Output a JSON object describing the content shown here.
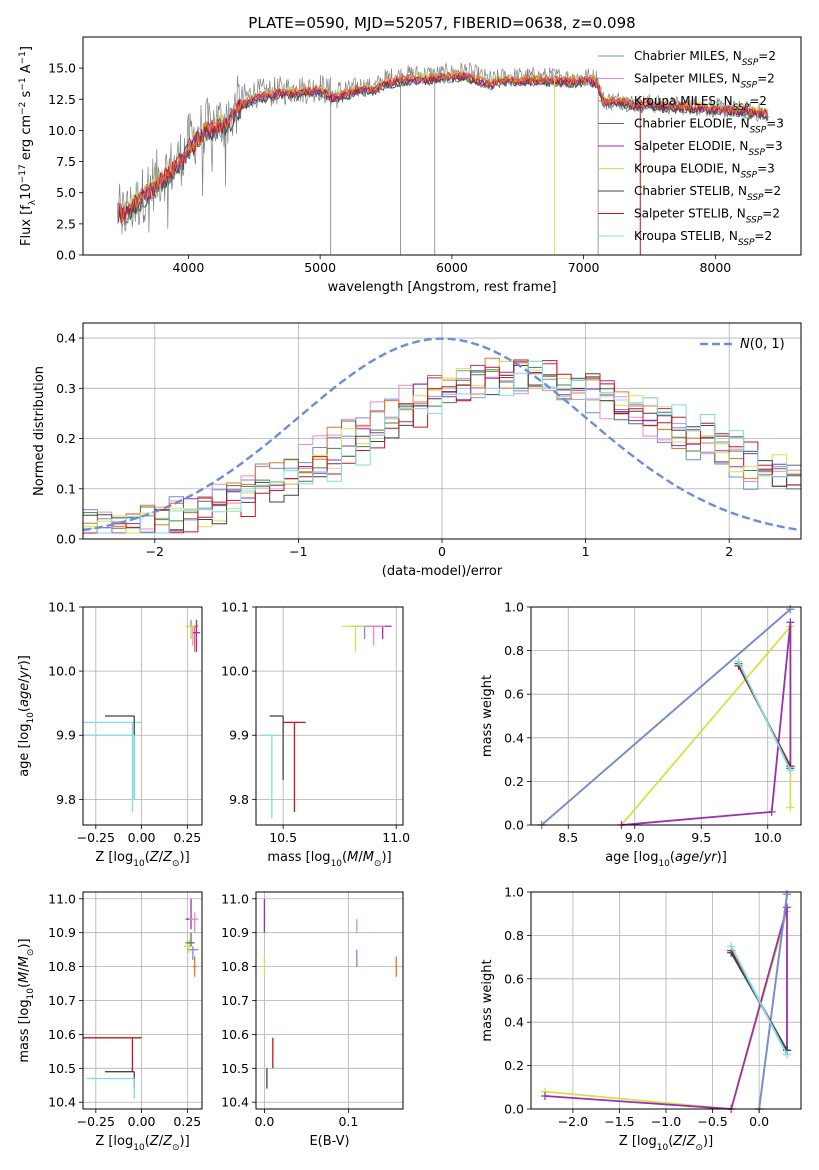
{
  "figure": {
    "title": "PLATE=0590, MJD=52057, FIBERID=0638, z=0.098"
  },
  "series_styles": [
    {
      "name": "Chabrier MILES, N$_{SSP}$=2",
      "label_text": "Chabrier MILES, N",
      "label_sub": "SSP",
      "label_end": "=2",
      "color": "#6f8fd8"
    },
    {
      "name": "Salpeter MILES, N$_{SSP}$=2",
      "label_text": "Salpeter MILES, N",
      "label_sub": "SSP",
      "label_end": "=2",
      "color": "#e98bcd"
    },
    {
      "name": "Kroupa MILES, N$_{SSP}$=2",
      "label_text": "Kroupa MILES, N",
      "label_sub": "SSP",
      "label_end": "=2",
      "color": "#e8742a"
    },
    {
      "name": "Chabrier ELODIE, N$_{SSP}$=3",
      "label_text": "Chabrier ELODIE, N",
      "label_sub": "SSP",
      "label_end": "=3",
      "color": "#4c7f4c"
    },
    {
      "name": "Salpeter ELODIE, N$_{SSP}$=3",
      "label_text": "Salpeter ELODIE, N",
      "label_sub": "SSP",
      "label_end": "=3",
      "color": "#9b2fae"
    },
    {
      "name": "Kroupa ELODIE, N$_{SSP}$=3",
      "label_text": "Kroupa ELODIE, N",
      "label_sub": "SSP",
      "label_end": "=3",
      "color": "#d7e049"
    },
    {
      "name": "Chabrier STELIB, N$_{SSP}$=2",
      "label_text": "Chabrier STELIB, N",
      "label_sub": "SSP",
      "label_end": "=2",
      "color": "#444444"
    },
    {
      "name": "Salpeter STELIB, N$_{SSP}$=2",
      "label_text": "Salpeter STELIB, N",
      "label_sub": "SSP",
      "label_end": "=2",
      "color": "#c0191e"
    },
    {
      "name": "Kroupa STELIB, N$_{SSP}$=2",
      "label_text": "Kroupa STELIB, N",
      "label_sub": "SSP",
      "label_end": "=2",
      "color": "#7fdde6"
    }
  ],
  "chart_data": [
    {
      "id": "spectrum",
      "type": "line",
      "xlabel": "wavelength [Angstrom, rest frame]",
      "ylabel": "Flux [f$_\\lambda$ 10$^{-17}$ erg cm$^{-2}$ s$^{-1}$ A$^{-1}$]",
      "xlim": [
        3200,
        8650
      ],
      "ylim": [
        0,
        17.5
      ],
      "xticks": [
        4000,
        5000,
        6000,
        7000,
        8000
      ],
      "yticks": [
        0.0,
        2.5,
        5.0,
        7.5,
        10.0,
        12.5,
        15.0
      ],
      "data_color": "#808080",
      "data_knots": {
        "x": [
          3450,
          3500,
          3600,
          3700,
          3800,
          3900,
          3950,
          4000,
          4100,
          4200,
          4300,
          4400,
          4500,
          4600,
          4700,
          4800,
          4900,
          5000,
          5100,
          5200,
          5300,
          5400,
          5500,
          5600,
          5700,
          5800,
          5900,
          6000,
          6100,
          6200,
          6300,
          6400,
          6500,
          6600,
          6700,
          6800,
          6900,
          7000,
          7100,
          7150,
          7200,
          7300,
          7400,
          7500,
          7600,
          7700,
          7800,
          7900,
          8000,
          8100,
          8200,
          8300,
          8400
        ],
        "y": [
          3.5,
          3.2,
          4.0,
          5.5,
          6.5,
          7.2,
          8.0,
          9.0,
          10.0,
          10.6,
          10.8,
          12.5,
          13.0,
          13.0,
          13.2,
          13.3,
          13.3,
          13.5,
          12.8,
          13.2,
          13.6,
          13.4,
          14.2,
          14.4,
          14.5,
          14.5,
          14.5,
          14.6,
          14.8,
          14.4,
          14.0,
          14.3,
          14.3,
          14.3,
          14.3,
          14.3,
          14.2,
          14.3,
          14.2,
          12.4,
          12.4,
          12.4,
          12.1,
          12.2,
          12.0,
          12.0,
          12.0,
          11.9,
          11.8,
          11.7,
          11.6,
          11.5,
          11.4
        ]
      },
      "model_knots": {
        "x": [
          3450,
          3500,
          3600,
          3700,
          3800,
          3900,
          3950,
          4000,
          4100,
          4200,
          4300,
          4400,
          4500,
          4600,
          4700,
          4800,
          4900,
          5000,
          5100,
          5200,
          5300,
          5400,
          5500,
          5600,
          5700,
          5800,
          5900,
          6000,
          6100,
          6200,
          6300,
          6400,
          6500,
          6600,
          6700,
          6800,
          6900,
          7000,
          7100,
          7150,
          7200,
          7300,
          7400,
          7500,
          7600,
          7700,
          7800,
          7900,
          8000,
          8100,
          8200,
          8300,
          8400
        ],
        "y": [
          4.0,
          3.0,
          4.2,
          5.0,
          6.0,
          7.0,
          7.5,
          8.5,
          9.6,
          10.2,
          10.5,
          12.0,
          12.6,
          12.8,
          13.0,
          13.0,
          13.1,
          13.2,
          12.6,
          12.9,
          13.3,
          13.2,
          13.8,
          14.0,
          14.1,
          14.1,
          14.2,
          14.3,
          14.4,
          14.0,
          13.7,
          14.0,
          14.0,
          14.0,
          14.0,
          14.0,
          13.9,
          14.0,
          13.9,
          12.3,
          12.3,
          12.3,
          12.0,
          12.1,
          11.9,
          11.9,
          11.9,
          11.8,
          11.7,
          11.6,
          11.5,
          11.4,
          11.3
        ]
      }
    },
    {
      "id": "residual_histogram",
      "type": "step",
      "xlabel": "(data-model)/error",
      "ylabel": "Normed distribution",
      "xlim": [
        -2.5,
        2.5
      ],
      "ylim": [
        0,
        0.43
      ],
      "xticks": [
        -2,
        -1,
        0,
        1,
        2
      ],
      "yticks": [
        0.0,
        0.1,
        0.2,
        0.3,
        0.4
      ],
      "gaussian": {
        "label": "$\\mathcal{N}(0,1)$",
        "mean": 0,
        "sigma": 1,
        "color": "#6a8fd6"
      },
      "bin_width": 0.1,
      "hist_profile": {
        "x": [
          -2.5,
          -2.0,
          -1.5,
          -1.0,
          -0.5,
          0.0,
          0.5,
          1.0,
          1.5,
          2.0,
          2.5
        ],
        "y": [
          0.02,
          0.03,
          0.07,
          0.13,
          0.22,
          0.3,
          0.33,
          0.3,
          0.24,
          0.17,
          0.11
        ]
      }
    },
    {
      "id": "age_vs_Z",
      "type": "errorbar",
      "xlabel": "Z [log$_{10}$(Z/Z$_\\odot$)]",
      "ylabel": "age  [log$_{10}$(age/yr)]",
      "xlim": [
        -0.32,
        0.33
      ],
      "ylim": [
        9.76,
        10.1
      ],
      "xticks": [
        -0.25,
        0.0,
        0.25
      ],
      "yticks": [
        9.8,
        9.9,
        10.0,
        10.1
      ],
      "points": [
        {
          "s": 8,
          "x": -0.05,
          "y": 9.92,
          "xlo": -0.32,
          "xhi": 0.0,
          "ylo": 9.78,
          "yhi": 9.92
        },
        {
          "s": 6,
          "x": -0.04,
          "y": 9.93,
          "xlo": -0.2,
          "xhi": -0.04,
          "ylo": 9.8,
          "yhi": 9.93
        },
        {
          "s": 8,
          "x": -0.04,
          "y": 9.9,
          "xlo": -0.32,
          "xhi": -0.04,
          "ylo": 9.8,
          "yhi": 9.9
        },
        {
          "s": 0,
          "x": 0.27,
          "y": 10.07,
          "xlo": 0.25,
          "xhi": 0.29,
          "ylo": 10.05,
          "yhi": 10.08
        },
        {
          "s": 1,
          "x": 0.28,
          "y": 10.07,
          "xlo": 0.26,
          "xhi": 0.3,
          "ylo": 10.04,
          "yhi": 10.07
        },
        {
          "s": 2,
          "x": 0.29,
          "y": 10.07,
          "xlo": 0.27,
          "xhi": 0.31,
          "ylo": 10.03,
          "yhi": 10.07
        },
        {
          "s": 4,
          "x": 0.3,
          "y": 10.06,
          "xlo": 0.28,
          "xhi": 0.32,
          "ylo": 10.03,
          "yhi": 10.08
        },
        {
          "s": 5,
          "x": 0.27,
          "y": 10.07,
          "xlo": 0.24,
          "xhi": 0.29,
          "ylo": 10.05,
          "yhi": 10.07
        }
      ]
    },
    {
      "id": "age_vs_mass",
      "type": "errorbar",
      "xlabel": "mass [log$_{10}$(M/M$_\\odot$)]",
      "ylabel": "",
      "xlim": [
        10.38,
        11.03
      ],
      "ylim": [
        9.76,
        10.1
      ],
      "xticks": [
        10.5,
        11.0
      ],
      "yticks": [
        9.8,
        9.9,
        10.0,
        10.1
      ],
      "points": [
        {
          "s": 7,
          "x": 10.55,
          "y": 9.92,
          "xlo": 10.5,
          "xhi": 10.6,
          "ylo": 9.78,
          "yhi": 9.92
        },
        {
          "s": 6,
          "x": 10.5,
          "y": 9.93,
          "xlo": 10.44,
          "xhi": 10.5,
          "ylo": 9.83,
          "yhi": 9.93
        },
        {
          "s": 8,
          "x": 10.45,
          "y": 9.9,
          "xlo": 10.4,
          "xhi": 10.48,
          "ylo": 9.77,
          "yhi": 9.9
        },
        {
          "s": 0,
          "x": 10.86,
          "y": 10.07,
          "xlo": 10.8,
          "xhi": 10.9,
          "ylo": 10.05,
          "yhi": 10.07
        },
        {
          "s": 4,
          "x": 10.94,
          "y": 10.07,
          "xlo": 10.9,
          "xhi": 10.98,
          "ylo": 10.05,
          "yhi": 10.07
        },
        {
          "s": 1,
          "x": 10.9,
          "y": 10.07,
          "xlo": 10.86,
          "xhi": 10.95,
          "ylo": 10.04,
          "yhi": 10.07
        },
        {
          "s": 5,
          "x": 10.82,
          "y": 10.07,
          "xlo": 10.76,
          "xhi": 10.86,
          "ylo": 10.03,
          "yhi": 10.07
        }
      ]
    },
    {
      "id": "mass_weight_vs_age",
      "type": "line",
      "xlabel": "age  [log$_{10}$(age/yr)]",
      "ylabel": "mass weight",
      "xlim": [
        8.22,
        10.25
      ],
      "ylim": [
        0,
        1.0
      ],
      "xticks": [
        8.5,
        9.0,
        9.5,
        10.0
      ],
      "yticks": [
        0.0,
        0.2,
        0.4,
        0.6,
        0.8,
        1.0
      ],
      "lines": [
        {
          "s": 2,
          "x": [
            8.3,
            10.17
          ],
          "y": [
            0.0,
            0.99
          ]
        },
        {
          "s": 0,
          "x": [
            8.3,
            10.17
          ],
          "y": [
            0.0,
            0.99
          ]
        },
        {
          "s": 5,
          "x": [
            8.9,
            10.17,
            10.17
          ],
          "y": [
            0.0,
            0.91,
            0.08
          ]
        },
        {
          "s": 4,
          "x": [
            8.9,
            10.03,
            10.17,
            10.17
          ],
          "y": [
            0.0,
            0.06,
            0.93,
            0.27
          ]
        },
        {
          "s": 7,
          "x": [
            9.78,
            10.17
          ],
          "y": [
            0.73,
            0.27
          ]
        },
        {
          "s": 6,
          "x": [
            9.78,
            10.17
          ],
          "y": [
            0.74,
            0.26
          ]
        },
        {
          "s": 8,
          "x": [
            9.78,
            10.17
          ],
          "y": [
            0.75,
            0.25
          ]
        }
      ]
    },
    {
      "id": "mass_vs_Z",
      "type": "errorbar",
      "xlabel": "Z [log$_{10}$(Z/Z$_\\odot$)]",
      "ylabel": "mass [log$_{10}$(M/M$_\\odot$)]",
      "xlim": [
        -0.32,
        0.33
      ],
      "ylim": [
        10.38,
        11.02
      ],
      "xticks": [
        -0.25,
        0.0,
        0.25
      ],
      "yticks": [
        10.4,
        10.5,
        10.6,
        10.7,
        10.8,
        10.9,
        11.0
      ],
      "points": [
        {
          "s": 7,
          "x": -0.05,
          "y": 10.59,
          "xlo": -0.32,
          "xhi": 0.0,
          "ylo": 10.49,
          "yhi": 10.59
        },
        {
          "s": 6,
          "x": -0.04,
          "y": 10.49,
          "xlo": -0.2,
          "xhi": -0.04,
          "ylo": 10.44,
          "yhi": 10.49
        },
        {
          "s": 8,
          "x": -0.04,
          "y": 10.47,
          "xlo": -0.3,
          "xhi": -0.04,
          "ylo": 10.41,
          "yhi": 10.47
        },
        {
          "s": 4,
          "x": 0.27,
          "y": 10.94,
          "xlo": 0.24,
          "xhi": 0.3,
          "ylo": 10.91,
          "yhi": 11.0
        },
        {
          "s": 1,
          "x": 0.29,
          "y": 10.94,
          "xlo": 0.26,
          "xhi": 0.31,
          "ylo": 10.9,
          "yhi": 10.96
        },
        {
          "s": 0,
          "x": 0.28,
          "y": 10.85,
          "xlo": 0.25,
          "xhi": 0.31,
          "ylo": 10.82,
          "yhi": 10.86
        },
        {
          "s": 5,
          "x": 0.26,
          "y": 10.86,
          "xlo": 0.23,
          "xhi": 0.28,
          "ylo": 10.84,
          "yhi": 10.88
        },
        {
          "s": 3,
          "x": 0.27,
          "y": 10.87,
          "xlo": 0.24,
          "xhi": 0.29,
          "ylo": 10.86,
          "yhi": 10.9
        },
        {
          "s": 2,
          "x": 0.29,
          "y": 10.8,
          "xlo": 0.28,
          "xhi": 0.3,
          "ylo": 10.77,
          "yhi": 10.83
        }
      ]
    },
    {
      "id": "mass_vs_ebv",
      "type": "errorbar",
      "xlabel": "E(B-V)",
      "ylabel": "",
      "xlim": [
        -0.01,
        0.165
      ],
      "ylim": [
        10.38,
        11.02
      ],
      "xticks": [
        0.0,
        0.1
      ],
      "yticks": [
        10.4,
        10.5,
        10.6,
        10.7,
        10.8,
        10.9,
        11.0
      ],
      "points": [
        {
          "s": 4,
          "x": 0.0,
          "y": 10.97,
          "xlo": 0.0,
          "xhi": 0.0,
          "ylo": 10.9,
          "yhi": 11.0
        },
        {
          "s": 5,
          "x": 0.0,
          "y": 10.8,
          "xlo": 0.0,
          "xhi": 0.0,
          "ylo": 10.78,
          "yhi": 10.83
        },
        {
          "s": 6,
          "x": 0.003,
          "y": 10.46,
          "xlo": 0.003,
          "xhi": 0.003,
          "ylo": 10.44,
          "yhi": 10.5
        },
        {
          "s": 7,
          "x": 0.01,
          "y": 10.55,
          "xlo": 0.01,
          "xhi": 0.01,
          "ylo": 10.5,
          "yhi": 10.59
        },
        {
          "s": 1,
          "x": 0.11,
          "y": 10.92,
          "xlo": 0.11,
          "xhi": 0.11,
          "ylo": 10.9,
          "yhi": 10.94
        },
        {
          "s": 0,
          "x": 0.11,
          "y": 10.83,
          "xlo": 0.11,
          "xhi": 0.11,
          "ylo": 10.8,
          "yhi": 10.85
        },
        {
          "s": 2,
          "x": 0.157,
          "y": 10.8,
          "xlo": 0.157,
          "xhi": 0.157,
          "ylo": 10.77,
          "yhi": 10.83
        }
      ]
    },
    {
      "id": "mass_weight_vs_Z",
      "type": "line",
      "xlabel": "Z [log$_{10}$(Z/Z$_\\odot$)]",
      "ylabel": "mass weight",
      "xlim": [
        -2.45,
        0.45
      ],
      "ylim": [
        0,
        1.0
      ],
      "xticks": [
        -2.0,
        -1.5,
        -1.0,
        -0.5,
        0.0
      ],
      "yticks": [
        0.0,
        0.2,
        0.4,
        0.6,
        0.8,
        1.0
      ],
      "lines": [
        {
          "s": 5,
          "x": [
            -2.3,
            -0.3,
            0.3
          ],
          "y": [
            0.08,
            0.0,
            0.91
          ]
        },
        {
          "s": 4,
          "x": [
            -2.3,
            -0.3,
            0.3,
            0.3
          ],
          "y": [
            0.06,
            0.0,
            0.93,
            0.27
          ]
        },
        {
          "s": 2,
          "x": [
            0.0,
            0.3
          ],
          "y": [
            0.0,
            0.99
          ]
        },
        {
          "s": 0,
          "x": [
            0.0,
            0.3
          ],
          "y": [
            0.0,
            0.99
          ]
        },
        {
          "s": 7,
          "x": [
            -0.3,
            0.3
          ],
          "y": [
            0.73,
            0.27
          ]
        },
        {
          "s": 6,
          "x": [
            -0.3,
            0.3
          ],
          "y": [
            0.72,
            0.27
          ]
        },
        {
          "s": 8,
          "x": [
            -0.3,
            0.3
          ],
          "y": [
            0.75,
            0.25
          ]
        }
      ]
    }
  ]
}
